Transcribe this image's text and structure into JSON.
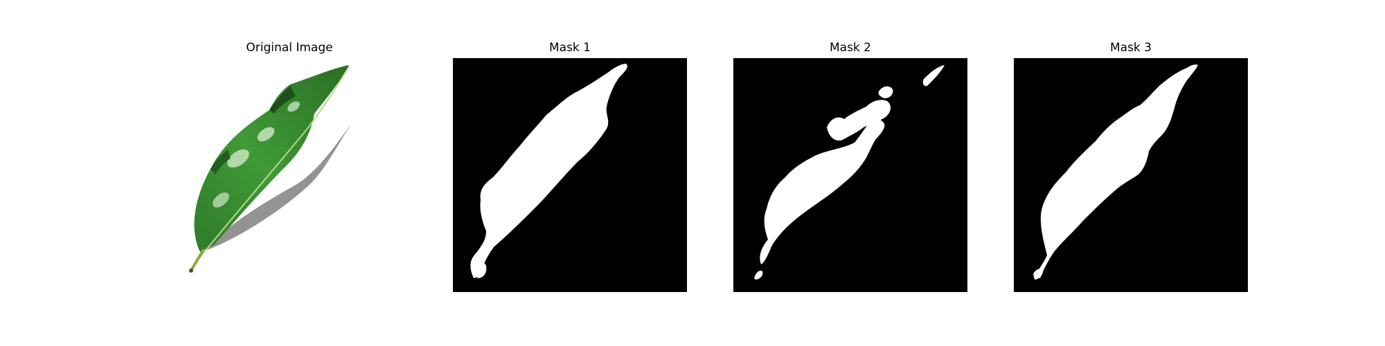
{
  "panels": [
    {
      "title": "Original Image",
      "kind": "photo"
    },
    {
      "title": "Mask 1",
      "kind": "mask"
    },
    {
      "title": "Mask 2",
      "kind": "mask"
    },
    {
      "title": "Mask 3",
      "kind": "mask"
    }
  ],
  "colors": {
    "background": "#ffffff",
    "mask_background": "#000000",
    "mask_foreground": "#ffffff",
    "leaf_dark": "#1f5a1c",
    "leaf_mid": "#3f8f34",
    "leaf_light": "#b9dcb0",
    "stem": "#8aa83a"
  }
}
